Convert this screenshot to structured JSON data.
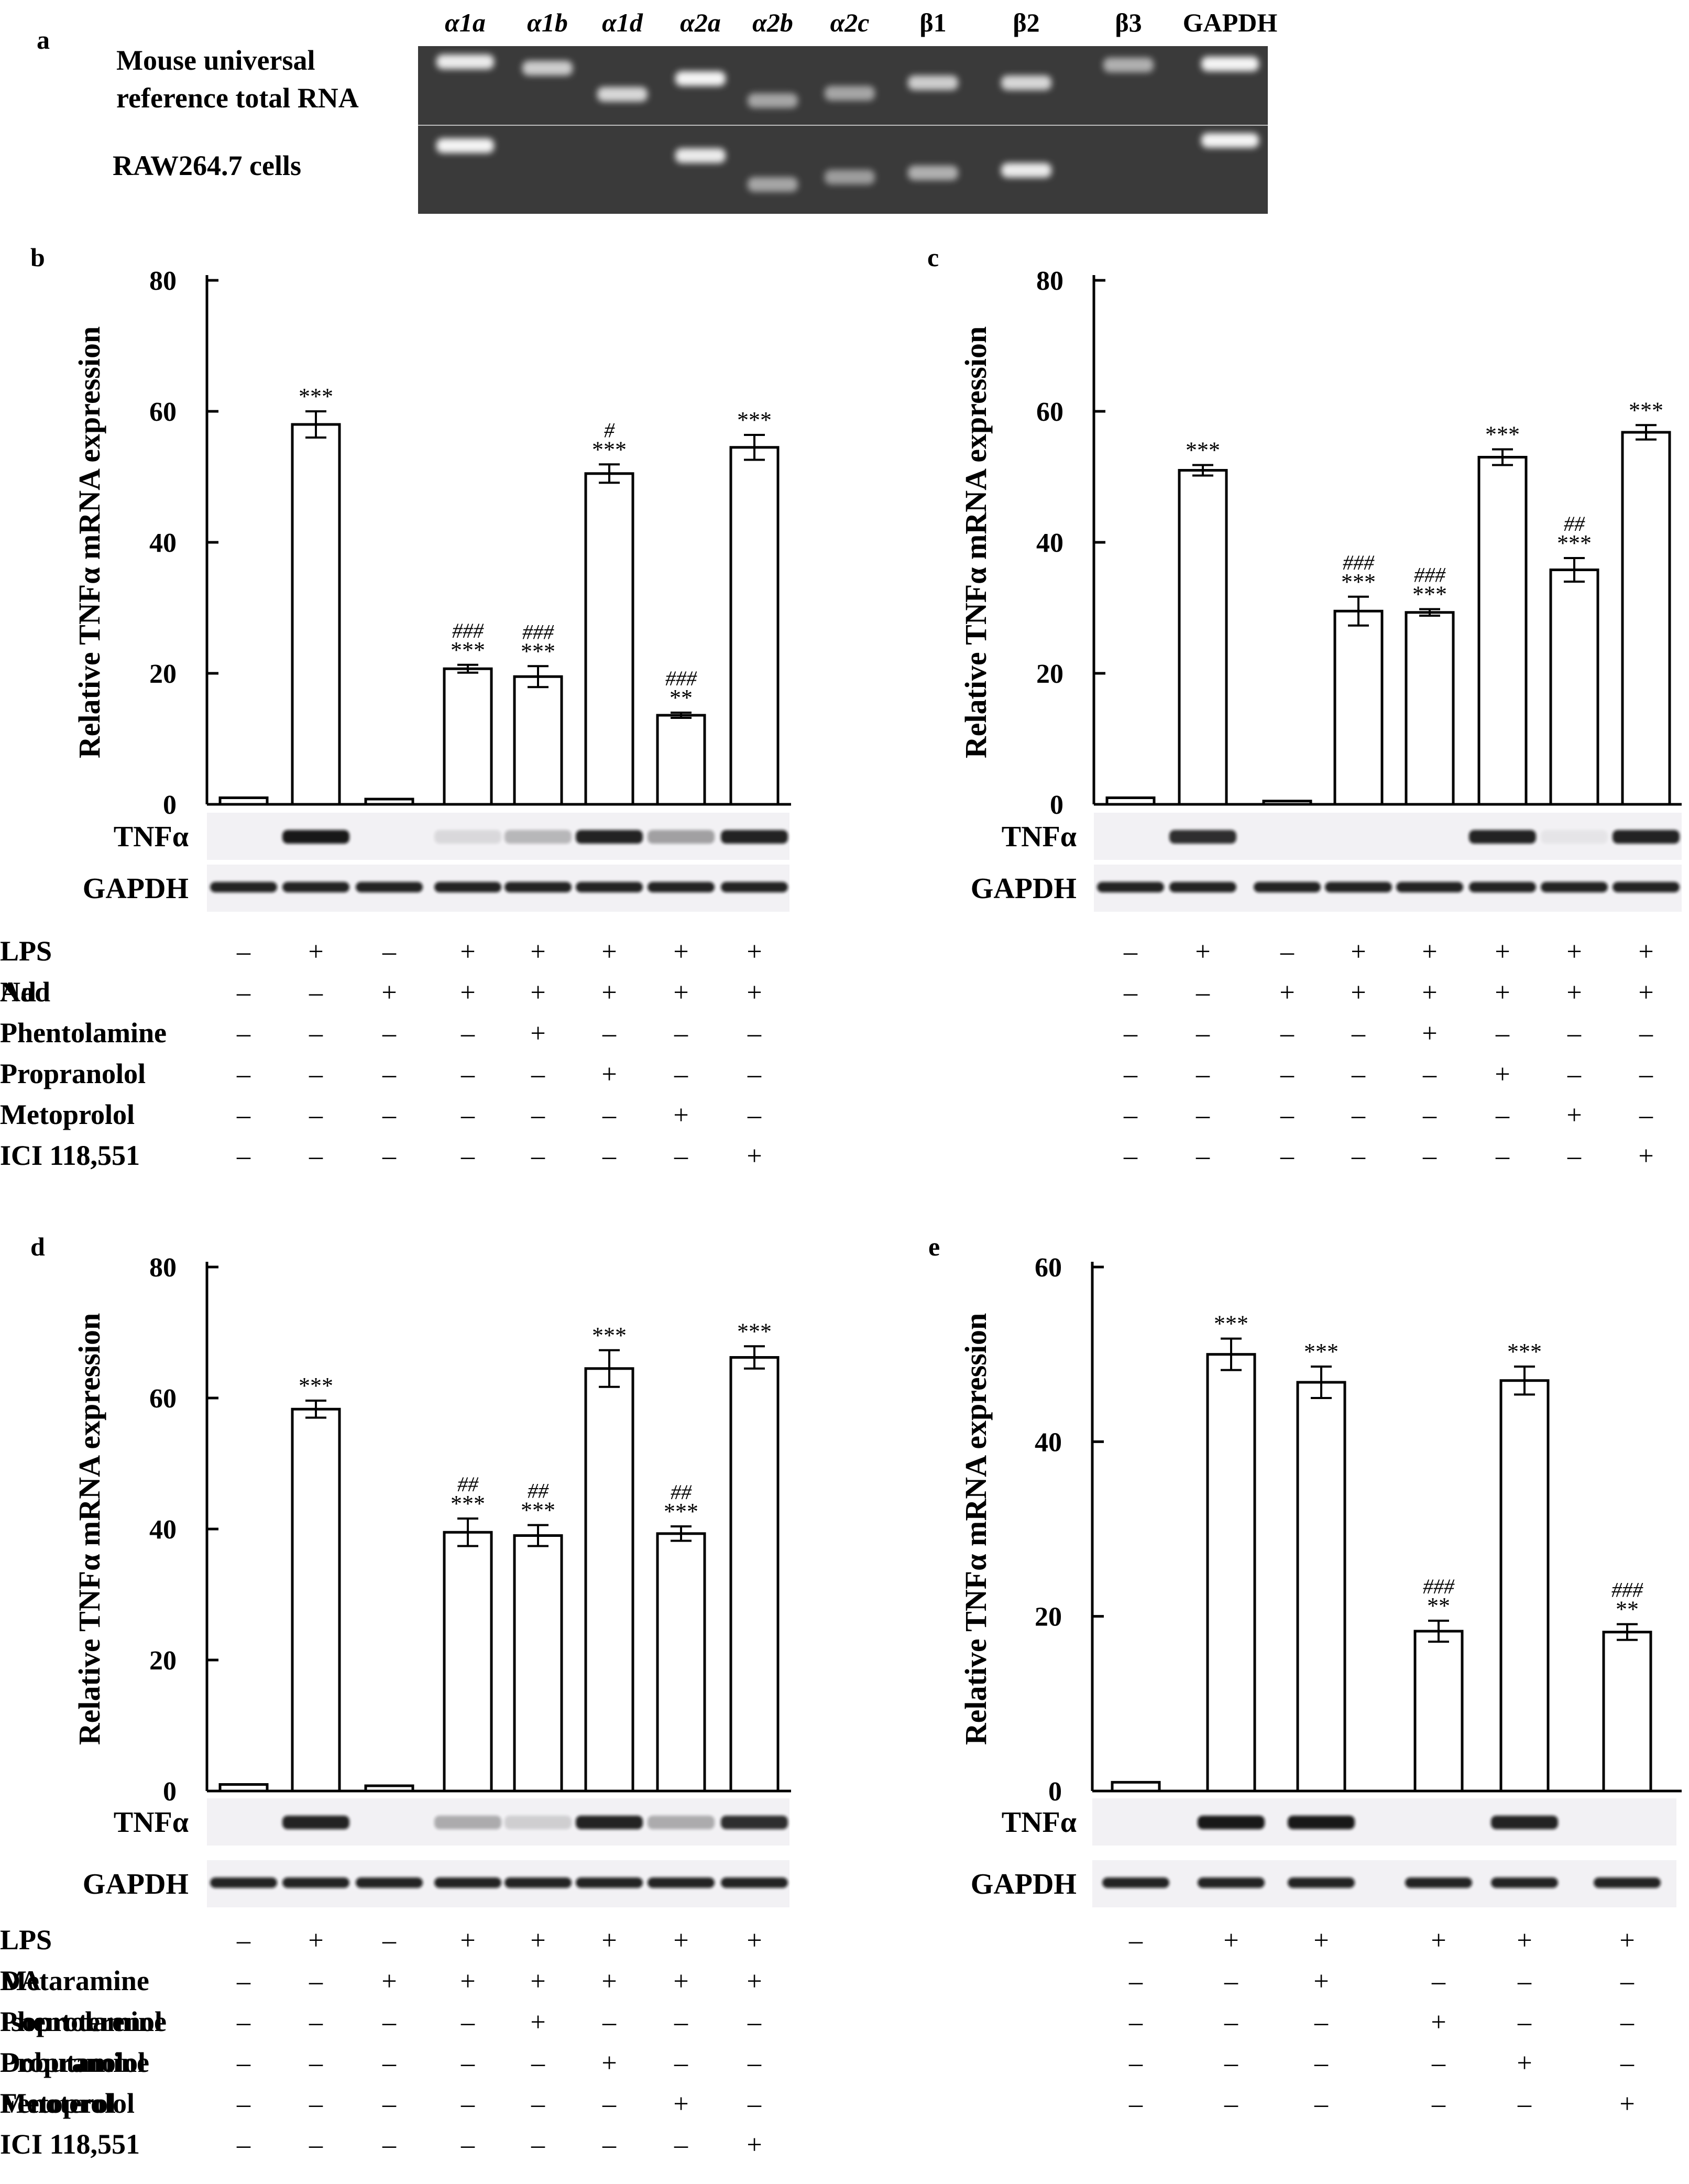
{
  "panel_a": {
    "label": "a",
    "lane_labels": [
      "α1a",
      "α1b",
      "α1d",
      "α2a",
      "α2b",
      "α2c",
      "β1",
      "β2",
      "β3",
      "GAPDH"
    ],
    "row_labels": [
      "Mouse universal reference total RNA",
      "RAW264.7 cells"
    ],
    "row_label_lines": [
      [
        "Mouse universal",
        "reference total RNA"
      ],
      [
        "RAW264.7 cells"
      ]
    ],
    "band_intensity": [
      [
        0.9,
        0.75,
        0.8,
        0.95,
        0.55,
        0.55,
        0.75,
        0.8,
        0.6,
        0.95
      ],
      [
        0.95,
        0.0,
        0.0,
        0.9,
        0.55,
        0.5,
        0.6,
        0.9,
        0.0,
        0.95
      ]
    ]
  },
  "chart_data": [
    {
      "panel": "b",
      "type": "bar",
      "ylabel": "Relative TNFα mRNA expression",
      "ylim": [
        0,
        80
      ],
      "yticks": [
        0,
        20,
        40,
        60,
        80
      ],
      "values": [
        1,
        58,
        0.8,
        20.7,
        19.5,
        50.5,
        13.6,
        54.5
      ],
      "errors": [
        0,
        2,
        0,
        0.6,
        1.6,
        1.4,
        0.4,
        1.9
      ],
      "annotations": [
        [
          "",
          ""
        ],
        [
          "",
          "***"
        ],
        [
          "",
          ""
        ],
        [
          "###",
          "***"
        ],
        [
          "###",
          "***"
        ],
        [
          "#",
          "***"
        ],
        [
          "###",
          "**"
        ],
        [
          "",
          "***"
        ]
      ],
      "blot_labels": [
        "TNFα",
        "GAPDH"
      ],
      "tnf_band": [
        0,
        0.95,
        0,
        0.1,
        0.25,
        0.9,
        0.35,
        0.9
      ],
      "treatments": [
        {
          "name": "LPS",
          "signs": [
            "–",
            "+",
            "–",
            "+",
            "+",
            "+",
            "+",
            "+"
          ]
        },
        {
          "name": "Ad",
          "signs": [
            "–",
            "–",
            "+",
            "+",
            "+",
            "+",
            "+",
            "+"
          ]
        },
        {
          "name": "Phentolamine",
          "signs": [
            "–",
            "–",
            "–",
            "–",
            "+",
            "–",
            "–",
            "–"
          ]
        },
        {
          "name": "Propranolol",
          "signs": [
            "–",
            "–",
            "–",
            "–",
            "–",
            "+",
            "–",
            "–"
          ]
        },
        {
          "name": "Metoprolol",
          "signs": [
            "–",
            "–",
            "–",
            "–",
            "–",
            "–",
            "+",
            "–"
          ]
        },
        {
          "name": "ICI 118,551",
          "signs": [
            "–",
            "–",
            "–",
            "–",
            "–",
            "–",
            "–",
            "+"
          ]
        }
      ]
    },
    {
      "panel": "c",
      "type": "bar",
      "ylabel": "Relative TNFα mRNA expression",
      "ylim": [
        0,
        80
      ],
      "yticks": [
        0,
        20,
        40,
        60,
        80
      ],
      "values": [
        1,
        51,
        0.5,
        29.5,
        29.3,
        53,
        35.8,
        56.8
      ],
      "errors": [
        0,
        0.8,
        0,
        2.2,
        0.5,
        1.2,
        1.8,
        1.1
      ],
      "annotations": [
        [
          "",
          ""
        ],
        [
          "",
          "***"
        ],
        [
          "",
          ""
        ],
        [
          "###",
          "***"
        ],
        [
          "###",
          "***"
        ],
        [
          "",
          "***"
        ],
        [
          "##",
          "***"
        ],
        [
          "",
          "***"
        ]
      ],
      "blot_labels": [
        "TNFα",
        "GAPDH"
      ],
      "tnf_band": [
        0,
        0.85,
        0,
        0,
        0,
        0.9,
        0.05,
        0.9
      ],
      "treatments": [
        {
          "name": "LPS",
          "signs": [
            "–",
            "+",
            "–",
            "+",
            "+",
            "+",
            "+",
            "+"
          ]
        },
        {
          "name": "Nad",
          "signs": [
            "–",
            "–",
            "+",
            "+",
            "+",
            "+",
            "+",
            "+"
          ]
        },
        {
          "name": "Phentolamine",
          "signs": [
            "–",
            "–",
            "–",
            "–",
            "+",
            "–",
            "–",
            "–"
          ]
        },
        {
          "name": "Propranolol",
          "signs": [
            "–",
            "–",
            "–",
            "–",
            "–",
            "+",
            "–",
            "–"
          ]
        },
        {
          "name": "Metoprolol",
          "signs": [
            "–",
            "–",
            "–",
            "–",
            "–",
            "–",
            "+",
            "–"
          ]
        },
        {
          "name": "ICI 118,551",
          "signs": [
            "–",
            "–",
            "–",
            "–",
            "–",
            "–",
            "–",
            "+"
          ]
        }
      ]
    },
    {
      "panel": "d",
      "type": "bar",
      "ylabel": "Relative TNFα mRNA expression",
      "ylim": [
        0,
        80
      ],
      "yticks": [
        0,
        20,
        40,
        60,
        80
      ],
      "values": [
        1,
        58.3,
        0.8,
        39.5,
        39,
        64.5,
        39.3,
        66.2
      ],
      "errors": [
        0,
        1.3,
        0,
        2.1,
        1.6,
        2.8,
        1.1,
        1.7
      ],
      "annotations": [
        [
          "",
          ""
        ],
        [
          "",
          "***"
        ],
        [
          "",
          ""
        ],
        [
          "##",
          "***"
        ],
        [
          "##",
          "***"
        ],
        [
          "",
          "***"
        ],
        [
          "##",
          "***"
        ],
        [
          "",
          "***"
        ]
      ],
      "blot_labels": [
        "TNFα",
        "GAPDH"
      ],
      "tnf_band": [
        0,
        0.9,
        0,
        0.3,
        0.15,
        0.9,
        0.3,
        0.85
      ],
      "treatments": [
        {
          "name": "LPS",
          "signs": [
            "–",
            "+",
            "–",
            "+",
            "+",
            "+",
            "+",
            "+"
          ]
        },
        {
          "name": "DA",
          "signs": [
            "–",
            "–",
            "+",
            "+",
            "+",
            "+",
            "+",
            "+"
          ]
        },
        {
          "name": "Phentolamine",
          "signs": [
            "–",
            "–",
            "–",
            "–",
            "+",
            "–",
            "–",
            "–"
          ]
        },
        {
          "name": "Propranolol",
          "signs": [
            "–",
            "–",
            "–",
            "–",
            "–",
            "+",
            "–",
            "–"
          ]
        },
        {
          "name": "Metoprolol",
          "signs": [
            "–",
            "–",
            "–",
            "–",
            "–",
            "–",
            "+",
            "–"
          ]
        },
        {
          "name": "ICI 118,551",
          "signs": [
            "–",
            "–",
            "–",
            "–",
            "–",
            "–",
            "–",
            "+"
          ]
        }
      ]
    },
    {
      "panel": "e",
      "type": "bar",
      "ylabel": "Relative TNFα mRNA expression",
      "ylim": [
        0,
        60
      ],
      "yticks": [
        0,
        20,
        40,
        60
      ],
      "values": [
        1,
        50,
        46.8,
        18.3,
        47,
        18.2
      ],
      "errors": [
        0,
        1.8,
        1.8,
        1.2,
        1.6,
        0.9
      ],
      "annotations": [
        [
          "",
          ""
        ],
        [
          "",
          "***"
        ],
        [
          "",
          "***"
        ],
        [
          "###",
          "**"
        ],
        [
          "",
          "***"
        ],
        [
          "###",
          "**"
        ]
      ],
      "blot_labels": [
        "TNFα",
        "GAPDH"
      ],
      "tnf_band": [
        0,
        0.95,
        0.95,
        0,
        0.9,
        0
      ],
      "treatments": [
        {
          "name": "LPS",
          "signs": [
            "–",
            "+",
            "+",
            "+",
            "+",
            "+"
          ]
        },
        {
          "name": "Metaramine",
          "signs": [
            "–",
            "–",
            "+",
            "–",
            "–",
            "–"
          ]
        },
        {
          "name": "Isoproterenol",
          "signs": [
            "–",
            "–",
            "–",
            "+",
            "–",
            "–"
          ]
        },
        {
          "name": "Dobutamine",
          "signs": [
            "–",
            "–",
            "–",
            "–",
            "+",
            "–"
          ]
        },
        {
          "name": "Fenoterol",
          "signs": [
            "–",
            "–",
            "–",
            "–",
            "–",
            "+"
          ]
        }
      ]
    }
  ],
  "colors": {
    "ink": "#000000",
    "gel_bg": "#3a3a3a",
    "gel_band": "#ffffff",
    "blot_bg": "#f2f1f4",
    "blot_band": "#111111"
  }
}
